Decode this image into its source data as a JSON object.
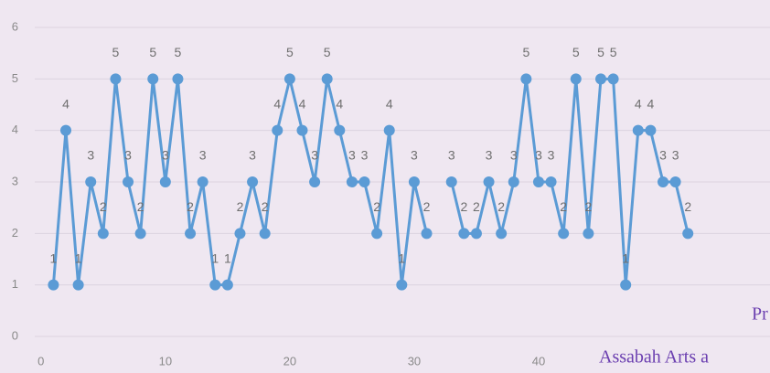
{
  "chart_data": {
    "type": "line",
    "x": [
      1,
      2,
      3,
      4,
      5,
      6,
      7,
      8,
      9,
      10,
      11,
      12,
      13,
      14,
      15,
      16,
      17,
      18,
      19,
      20,
      21,
      22,
      23,
      24,
      25,
      26,
      27,
      28,
      29,
      30,
      31,
      32,
      33,
      34,
      35,
      36,
      37,
      38,
      39,
      40,
      41,
      42,
      43,
      44,
      45,
      46,
      47,
      48,
      49,
      50,
      51,
      52
    ],
    "series": [
      {
        "name": "",
        "color": "#5b9bd5",
        "values": [
          1,
          4,
          1,
          3,
          2,
          5,
          3,
          2,
          5,
          3,
          5,
          2,
          3,
          1,
          1,
          2,
          3,
          2,
          4,
          5,
          4,
          3,
          5,
          4,
          3,
          3,
          2,
          4,
          1,
          3,
          2,
          null,
          3,
          2,
          2,
          3,
          2,
          3,
          5,
          3,
          3,
          2,
          5,
          2,
          5,
          5,
          1,
          4,
          4,
          3,
          3,
          2
        ]
      }
    ],
    "xlim": [
      -0.5,
      58.6
    ],
    "ylim": [
      0,
      6
    ],
    "xticks": [
      0,
      10,
      20,
      30,
      40
    ],
    "yticks": [
      0,
      1,
      2,
      3,
      4,
      5,
      6
    ],
    "grid": true,
    "data_labels": true,
    "annotations": [
      "Pr",
      "Assabah Arts a"
    ]
  }
}
